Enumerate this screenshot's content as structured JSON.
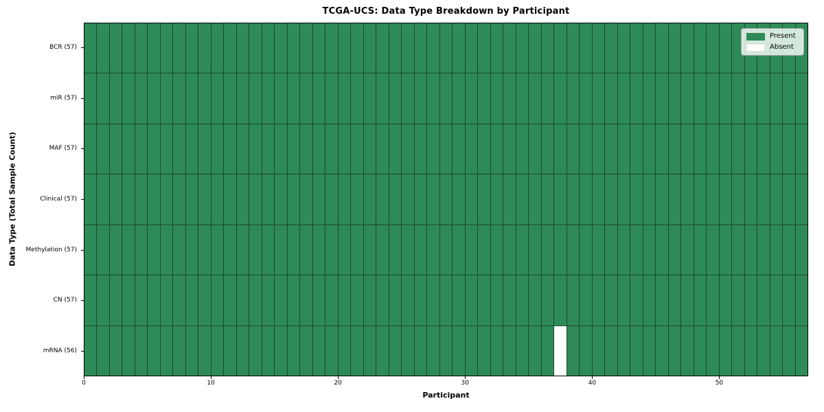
{
  "chart_data": {
    "type": "heatmap",
    "title": "TCGA-UCS: Data Type Breakdown by Participant",
    "xlabel": "Participant",
    "ylabel": "Data Type (Total Sample Count)",
    "xlim": [
      0,
      57
    ],
    "n_participants": 57,
    "x_ticks": [
      0,
      10,
      20,
      30,
      40,
      50
    ],
    "grid": true,
    "rows": [
      {
        "label": "BCR (57)",
        "total_samples": 57,
        "absent_participants": []
      },
      {
        "label": "miR (57)",
        "total_samples": 57,
        "absent_participants": []
      },
      {
        "label": "MAF (57)",
        "total_samples": 57,
        "absent_participants": []
      },
      {
        "label": "Clinical (57)",
        "total_samples": 57,
        "absent_participants": []
      },
      {
        "label": "Methylation (57)",
        "total_samples": 57,
        "absent_participants": []
      },
      {
        "label": "CN (57)",
        "total_samples": 57,
        "absent_participants": []
      },
      {
        "label": "mRNA (56)",
        "total_samples": 56,
        "absent_participants": [
          37
        ]
      }
    ],
    "legend": {
      "position": "upper right",
      "items": [
        {
          "label": "Present",
          "color": "#2e8b57"
        },
        {
          "label": "Absent",
          "color": "#ffffff"
        }
      ]
    },
    "colors": {
      "present": "#2e8b57",
      "absent": "#ffffff",
      "grid_line": "#1d4530",
      "frame": "#000000"
    }
  }
}
